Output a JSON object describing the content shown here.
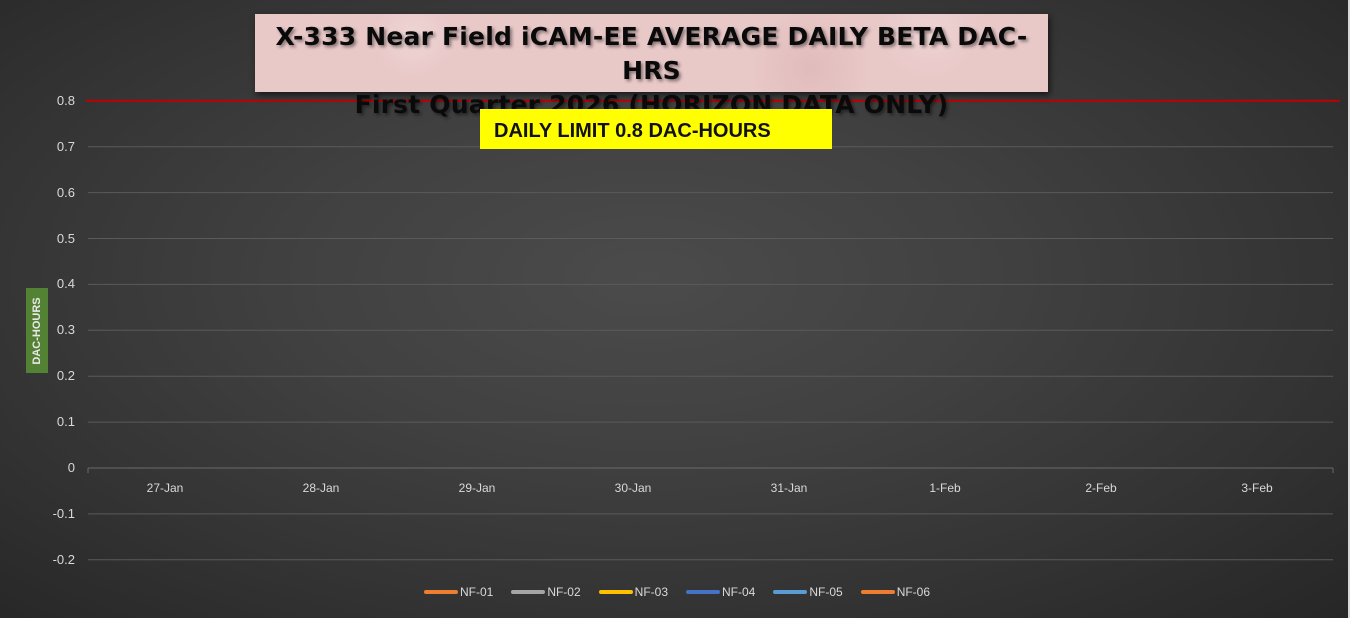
{
  "chart": {
    "title_line1": "X-333 Near Field iCAM-EE AVERAGE DAILY BETA DAC-HRS",
    "title_line2": "First Quarter 2026 (HORIZON DATA ONLY)",
    "limit_label": "DAILY LIMIT 0.8 DAC-HOURS",
    "y_axis_title": "DAC-HOURS",
    "limit_color": "#c00000",
    "limit_box_color": "#ffff00",
    "title_box_color": "#e9c8c8",
    "y_title_box_color": "#548235"
  },
  "chart_data": {
    "type": "line",
    "title": "X-333 Near Field iCAM-EE AVERAGE DAILY BETA DAC-HRS — First Quarter 2026 (HORIZON DATA ONLY)",
    "xlabel": "",
    "ylabel": "DAC-HOURS",
    "ylim": [
      -0.2,
      0.8
    ],
    "yticks": [
      "0.8",
      "0.7",
      "0.6",
      "0.5",
      "0.4",
      "0.3",
      "0.2",
      "0.1",
      "0",
      "-0.1",
      "-0.2"
    ],
    "categories": [
      "27-Jan",
      "28-Jan",
      "29-Jan",
      "30-Jan",
      "31-Jan",
      "1-Feb",
      "2-Feb",
      "3-Feb"
    ],
    "series": [
      {
        "name": "NF-01",
        "color": "#ed7d31",
        "values": [
          0,
          0,
          0,
          0,
          0,
          0,
          0,
          0
        ]
      },
      {
        "name": "NF-02",
        "color": "#a5a5a5",
        "values": [
          0,
          0,
          0,
          0,
          0,
          0,
          0,
          0
        ]
      },
      {
        "name": "NF-03",
        "color": "#ffc000",
        "values": [
          0,
          0,
          0,
          0,
          0,
          0,
          0,
          0
        ]
      },
      {
        "name": "NF-04",
        "color": "#4472c4",
        "values": [
          0,
          0,
          0,
          0,
          0,
          0,
          0,
          0
        ]
      },
      {
        "name": "NF-05",
        "color": "#5b9bd5",
        "values": [
          0,
          0,
          0,
          0,
          0,
          0,
          0,
          0
        ]
      },
      {
        "name": "NF-06",
        "color": "#ed7d31",
        "values": [
          0,
          0,
          0,
          0,
          0,
          0,
          0,
          0
        ]
      }
    ],
    "annotations": [
      {
        "type": "hline",
        "y": 0.8,
        "color": "#c00000",
        "label": "DAILY LIMIT 0.8 DAC-HOURS"
      }
    ],
    "grid": true,
    "legend_position": "bottom"
  }
}
